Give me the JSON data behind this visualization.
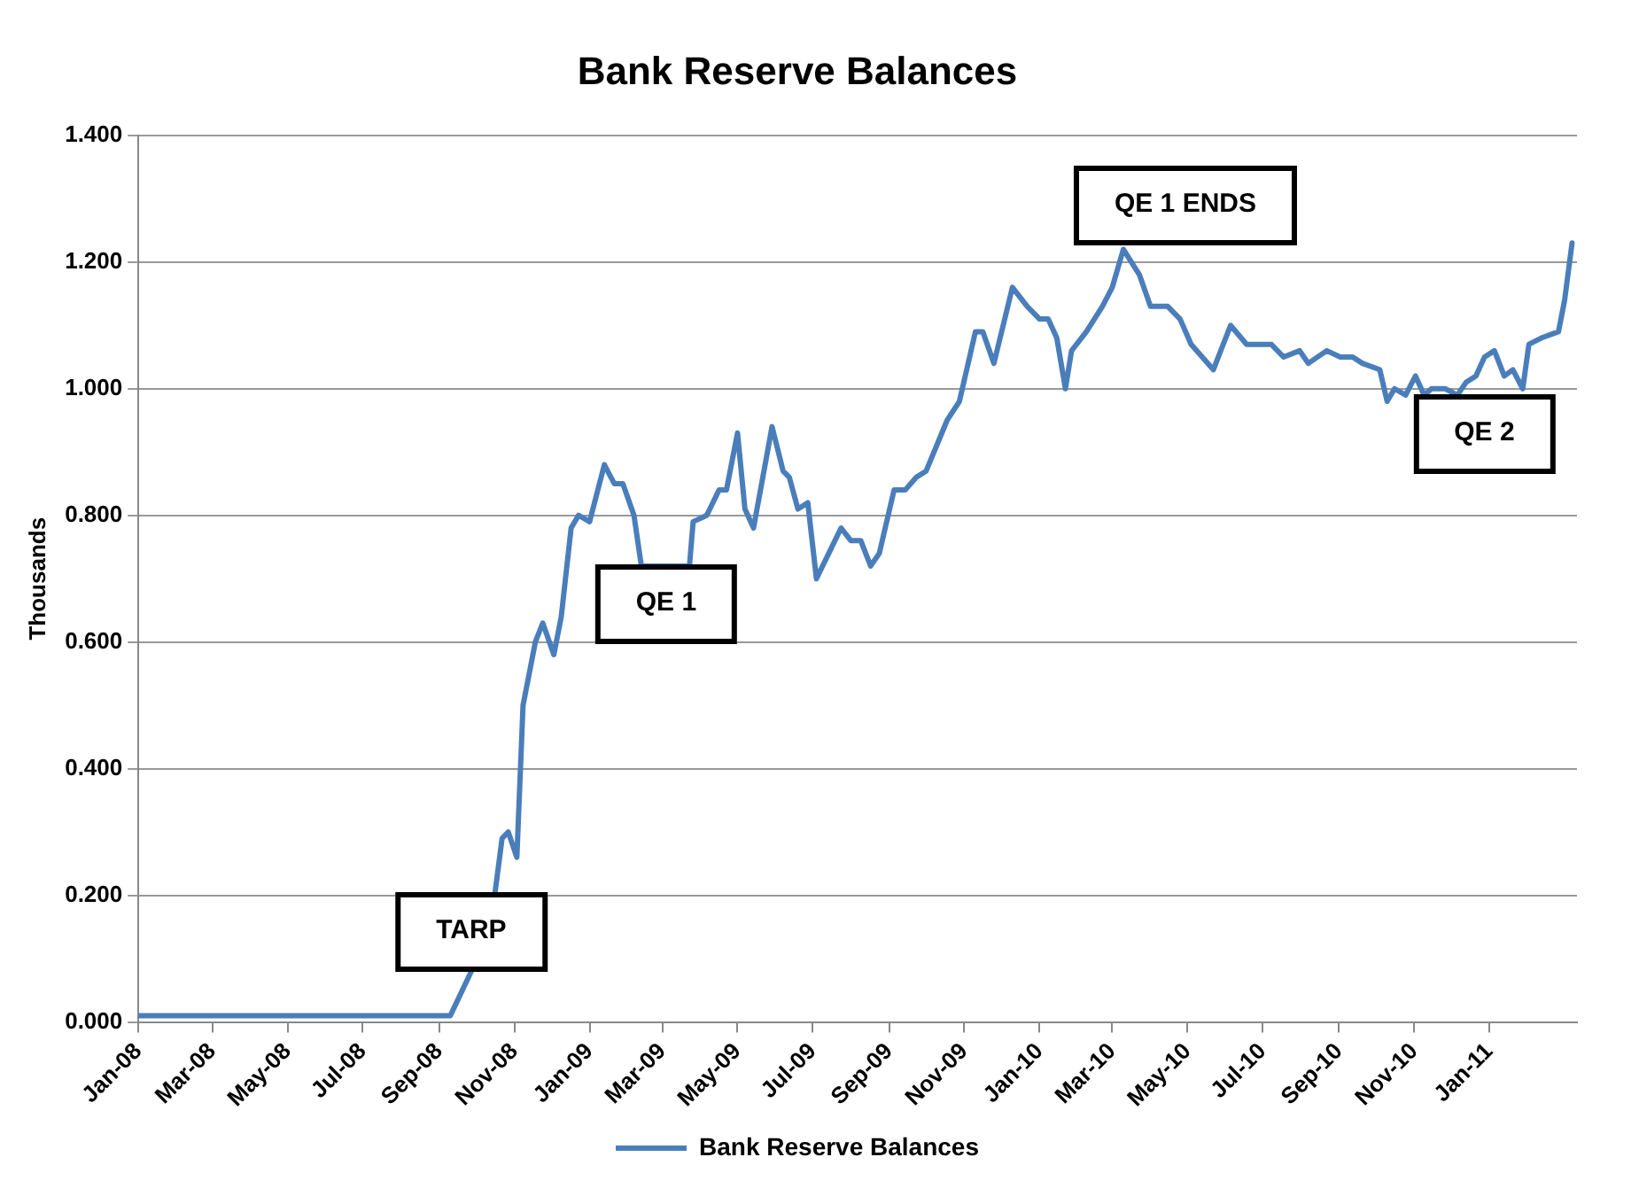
{
  "chart_data": {
    "type": "line",
    "title": "Bank Reserve Balances",
    "ylabel": "Thousands",
    "x": [
      "2008-01-01",
      "2008-02-01",
      "2008-04-01",
      "2008-06-01",
      "2008-08-01",
      "2008-09-10",
      "2008-09-27",
      "2008-10-16",
      "2008-10-22",
      "2008-10-27",
      "2008-11-03",
      "2008-11-08",
      "2008-11-18",
      "2008-11-24",
      "2008-12-03",
      "2008-12-09",
      "2008-12-17",
      "2008-12-23",
      "2009-01-01",
      "2009-01-13",
      "2009-01-21",
      "2009-01-28",
      "2009-02-06",
      "2009-02-12",
      "2009-03-23",
      "2009-03-26",
      "2009-04-06",
      "2009-04-16",
      "2009-04-22",
      "2009-05-01",
      "2009-05-07",
      "2009-05-14",
      "2009-05-29",
      "2009-06-07",
      "2009-06-12",
      "2009-06-19",
      "2009-06-27",
      "2009-07-04",
      "2009-07-14",
      "2009-07-24",
      "2009-08-01",
      "2009-08-09",
      "2009-08-17",
      "2009-08-24",
      "2009-09-05",
      "2009-09-14",
      "2009-09-23",
      "2009-10-01",
      "2009-10-18",
      "2009-10-28",
      "2009-11-10",
      "2009-11-16",
      "2009-11-25",
      "2009-12-10",
      "2009-12-22",
      "2010-01-01",
      "2010-01-08",
      "2010-01-15",
      "2010-01-22",
      "2010-01-27",
      "2010-02-08",
      "2010-02-21",
      "2010-03-01",
      "2010-03-10",
      "2010-03-23",
      "2010-04-01",
      "2010-04-15",
      "2010-04-25",
      "2010-05-04",
      "2010-05-22",
      "2010-06-05",
      "2010-06-18",
      "2010-06-26",
      "2010-07-08",
      "2010-07-18",
      "2010-07-31",
      "2010-08-07",
      "2010-08-22",
      "2010-09-02",
      "2010-09-12",
      "2010-09-20",
      "2010-10-04",
      "2010-10-10",
      "2010-10-16",
      "2010-10-25",
      "2010-11-02",
      "2010-11-09",
      "2010-11-15",
      "2010-11-26",
      "2010-12-06",
      "2010-12-13",
      "2010-12-21",
      "2010-12-28",
      "2011-01-05",
      "2011-01-13",
      "2011-01-20",
      "2011-01-28",
      "2011-02-02",
      "2011-02-12",
      "2011-02-26",
      "2011-03-03",
      "2011-03-09"
    ],
    "series": [
      {
        "name": "Bank Reserve Balances",
        "color": "#4a7ebb",
        "values": [
          0.01,
          0.01,
          0.01,
          0.01,
          0.01,
          0.01,
          0.08,
          0.2,
          0.29,
          0.3,
          0.26,
          0.5,
          0.6,
          0.63,
          0.58,
          0.64,
          0.78,
          0.8,
          0.79,
          0.88,
          0.85,
          0.85,
          0.8,
          0.72,
          0.72,
          0.79,
          0.8,
          0.84,
          0.84,
          0.93,
          0.81,
          0.78,
          0.94,
          0.87,
          0.86,
          0.81,
          0.82,
          0.7,
          0.74,
          0.78,
          0.76,
          0.76,
          0.72,
          0.74,
          0.84,
          0.84,
          0.86,
          0.87,
          0.95,
          0.98,
          1.09,
          1.09,
          1.04,
          1.16,
          1.13,
          1.11,
          1.11,
          1.08,
          1.0,
          1.06,
          1.09,
          1.13,
          1.16,
          1.22,
          1.18,
          1.13,
          1.13,
          1.11,
          1.07,
          1.03,
          1.1,
          1.07,
          1.07,
          1.07,
          1.05,
          1.06,
          1.04,
          1.06,
          1.05,
          1.05,
          1.04,
          1.03,
          0.98,
          1.0,
          0.99,
          1.02,
          0.99,
          1.0,
          1.0,
          0.99,
          1.01,
          1.02,
          1.05,
          1.06,
          1.02,
          1.03,
          1.0,
          1.07,
          1.08,
          1.09,
          1.14,
          1.23
        ]
      }
    ],
    "xlim": [
      "2008-01-01",
      "2011-03-13"
    ],
    "xticks": [
      {
        "value": "2008-01",
        "label": "Jan-08"
      },
      {
        "value": "2008-03",
        "label": "Mar-08"
      },
      {
        "value": "2008-05",
        "label": "May-08"
      },
      {
        "value": "2008-07",
        "label": "Jul-08"
      },
      {
        "value": "2008-09",
        "label": "Sep-08"
      },
      {
        "value": "2008-11",
        "label": "Nov-08"
      },
      {
        "value": "2009-01",
        "label": "Jan-09"
      },
      {
        "value": "2009-03",
        "label": "Mar-09"
      },
      {
        "value": "2009-05",
        "label": "May-09"
      },
      {
        "value": "2009-07",
        "label": "Jul-09"
      },
      {
        "value": "2009-09",
        "label": "Sep-09"
      },
      {
        "value": "2009-11",
        "label": "Nov-09"
      },
      {
        "value": "2010-01",
        "label": "Jan-10"
      },
      {
        "value": "2010-03",
        "label": "Mar-10"
      },
      {
        "value": "2010-05",
        "label": "May-10"
      },
      {
        "value": "2010-07",
        "label": "Jul-10"
      },
      {
        "value": "2010-09",
        "label": "Sep-10"
      },
      {
        "value": "2010-11",
        "label": "Nov-10"
      },
      {
        "value": "2011-01",
        "label": "Jan-11"
      }
    ],
    "ylim": [
      0,
      1.4
    ],
    "yticks": [
      {
        "value": 0,
        "label": "0.000"
      },
      {
        "value": 0.2,
        "label": "0.200"
      },
      {
        "value": 0.4,
        "label": "0.400"
      },
      {
        "value": 0.6,
        "label": "0.600"
      },
      {
        "value": 0.8,
        "label": "0.800"
      },
      {
        "value": 1.0,
        "label": "1.000"
      },
      {
        "value": 1.2,
        "label": "1.200"
      },
      {
        "value": 1.4,
        "label": "1.400"
      }
    ],
    "annotations": [
      {
        "text": "TARP",
        "x": "2008-09-27",
        "y": 0.08
      },
      {
        "text": "QE 1",
        "x": "2009-02-12",
        "y": 0.72
      },
      {
        "text": "QE 1 ENDS",
        "x": "2010-03-10",
        "y": 1.22
      },
      {
        "text": "QE 2",
        "x": "2010-11-09",
        "y": 0.99
      }
    ],
    "grid": "y",
    "legend": "bottom",
    "marker": "none",
    "line_style": "solid"
  }
}
